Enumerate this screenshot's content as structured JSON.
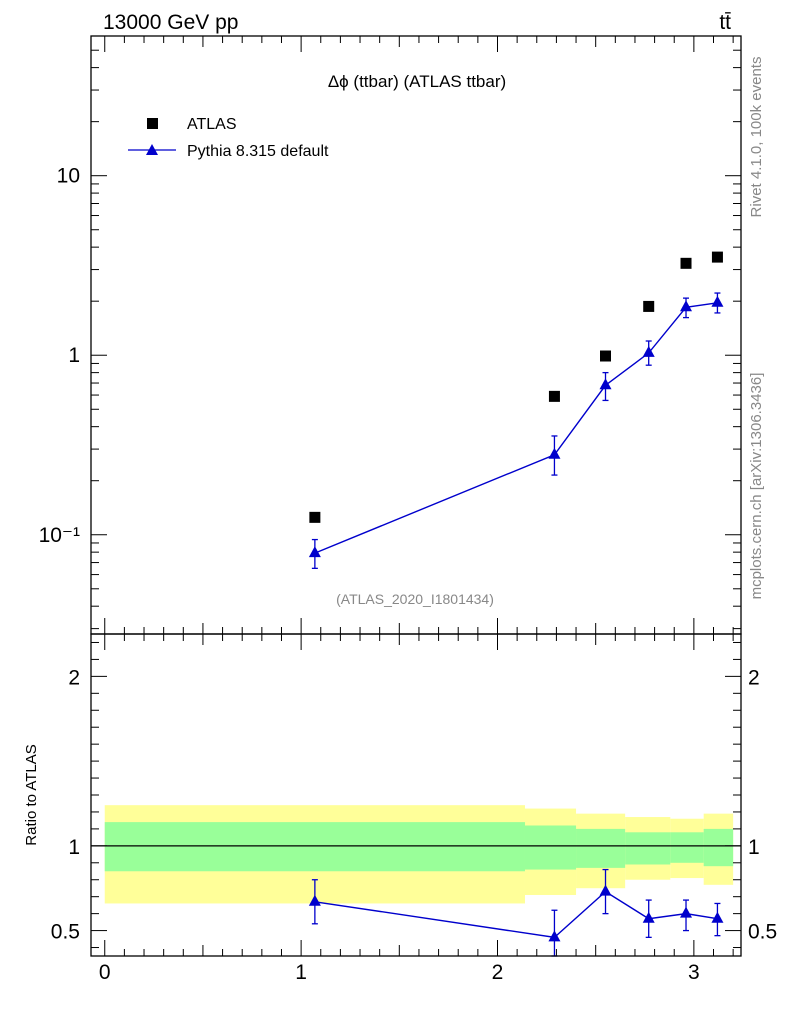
{
  "header": {
    "energy_label": "13000 GeV pp",
    "process_label": "tt̄"
  },
  "side_labels": {
    "rivet": "Rivet 4.1.0,  100k events",
    "source": "mcplots.cern.ch [arXiv:1306.3436]"
  },
  "colors": {
    "mc": "#0000cc",
    "data": "#000000",
    "band_inner": "#99ff99",
    "band_outer": "#ffff99",
    "watermark": "#888888"
  },
  "chart_data": [
    {
      "type": "scatter",
      "panel": "main",
      "title": "Δϕ (ttbar) (ATLAS ttbar)",
      "watermark": "(ATLAS_2020_I1801434)",
      "xlabel": "",
      "ylabel": "",
      "yscale": "log",
      "xlim": [
        -0.07,
        3.24
      ],
      "ylim": [
        0.028,
        60
      ],
      "y_ticks": [
        {
          "value": 10,
          "label": "10"
        },
        {
          "value": 1,
          "label": "1"
        },
        {
          "value": 0.1,
          "label": "10⁻¹"
        }
      ],
      "legend": {
        "position": "top-left",
        "entries": [
          "ATLAS",
          "Pythia 8.315 default"
        ]
      },
      "series": [
        {
          "name": "ATLAS",
          "style": "markers-square",
          "x": [
            1.07,
            2.29,
            2.55,
            2.77,
            2.96,
            3.12
          ],
          "y": [
            0.125,
            0.59,
            0.99,
            1.87,
            3.25,
            3.52
          ]
        },
        {
          "name": "Pythia 8.315 default",
          "style": "line-triangle",
          "x": [
            1.07,
            2.29,
            2.55,
            2.77,
            2.96,
            3.12
          ],
          "y": [
            0.079,
            0.279,
            0.68,
            1.03,
            1.85,
            1.96
          ],
          "yerr_low": [
            0.065,
            0.215,
            0.56,
            0.88,
            1.62,
            1.72
          ],
          "yerr_high": [
            0.094,
            0.355,
            0.8,
            1.2,
            2.08,
            2.22
          ]
        }
      ]
    },
    {
      "type": "line",
      "panel": "ratio",
      "ylabel": "Ratio to ATLAS",
      "xlim": [
        -0.07,
        3.24
      ],
      "ylim": [
        0.35,
        2.25
      ],
      "x_ticks": [
        0,
        1,
        2,
        3
      ],
      "y_ticks": [
        0.5,
        1,
        2
      ],
      "reference_line": 1,
      "bands": {
        "bin_edges": [
          0,
          2.14,
          2.4,
          2.65,
          2.88,
          3.05,
          3.2
        ],
        "inner_low": [
          0.85,
          0.86,
          0.87,
          0.89,
          0.9,
          0.88
        ],
        "inner_high": [
          1.14,
          1.12,
          1.1,
          1.08,
          1.08,
          1.1
        ],
        "outer_low": [
          0.66,
          0.71,
          0.75,
          0.8,
          0.81,
          0.77
        ],
        "outer_high": [
          1.24,
          1.22,
          1.19,
          1.17,
          1.16,
          1.19
        ]
      },
      "series": [
        {
          "name": "Pythia 8.315 default",
          "x": [
            1.07,
            2.29,
            2.55,
            2.77,
            2.96,
            3.12
          ],
          "y": [
            0.67,
            0.46,
            0.73,
            0.57,
            0.6,
            0.57
          ],
          "yerr_low": [
            0.54,
            0.35,
            0.6,
            0.46,
            0.5,
            0.47
          ],
          "yerr_high": [
            0.8,
            0.62,
            0.86,
            0.68,
            0.68,
            0.66
          ]
        }
      ]
    }
  ]
}
